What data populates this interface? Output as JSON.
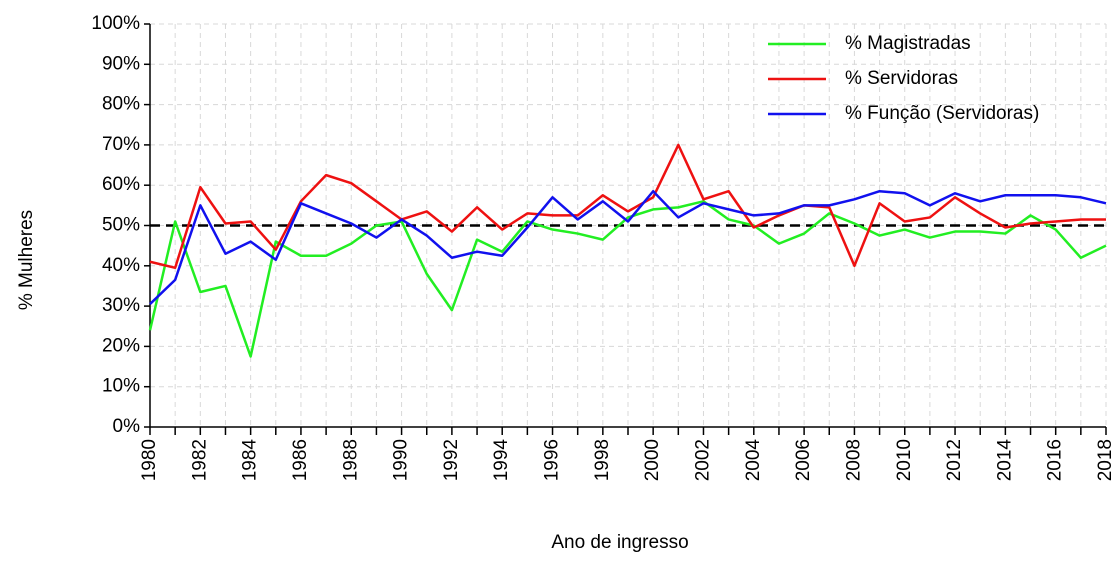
{
  "chart_data": {
    "type": "line",
    "xlabel": "Ano de ingresso",
    "ylabel": "% Mulheres",
    "x": [
      1980,
      1981,
      1982,
      1983,
      1984,
      1985,
      1986,
      1987,
      1988,
      1989,
      1990,
      1991,
      1992,
      1993,
      1994,
      1995,
      1996,
      1997,
      1998,
      1999,
      2000,
      2001,
      2002,
      2003,
      2004,
      2005,
      2006,
      2007,
      2008,
      2009,
      2010,
      2011,
      2012,
      2013,
      2014,
      2015,
      2016,
      2017,
      2018
    ],
    "series": [
      {
        "name": "% Magistradas",
        "color": "#22ee22",
        "values": [
          24,
          51,
          33.5,
          35,
          17.5,
          46,
          42.5,
          42.5,
          45.5,
          50,
          51,
          38,
          29,
          46.5,
          43.5,
          51,
          49,
          48,
          46.5,
          52,
          54,
          54.5,
          56,
          51.5,
          50,
          45.5,
          48,
          53,
          50.5,
          47.5,
          49,
          47,
          48.5,
          48.5,
          48,
          52.5,
          49,
          42,
          45
        ]
      },
      {
        "name": "% Servidoras",
        "color": "#ee1111",
        "values": [
          41,
          39.5,
          59.5,
          50.5,
          51,
          44,
          56,
          62.5,
          60.5,
          56,
          51.5,
          53.5,
          48.5,
          54.5,
          49,
          53,
          52.5,
          52.5,
          57.5,
          53.5,
          57,
          70,
          56.5,
          58.5,
          49.5,
          52.5,
          55,
          54.5,
          40,
          55.5,
          51,
          52,
          57,
          53,
          49.5,
          50.5,
          51,
          51.5,
          51.5
        ]
      },
      {
        "name": "% Função (Servidoras)",
        "color": "#1111ee",
        "values": [
          30.5,
          36.5,
          55,
          43,
          46,
          41.5,
          55.5,
          53,
          50.5,
          47,
          51.5,
          47.5,
          42,
          43.5,
          42.5,
          49.5,
          57,
          51.5,
          56,
          51,
          58.5,
          52,
          55.5,
          54,
          52.5,
          53,
          55,
          55,
          56.5,
          58.5,
          58,
          55,
          58,
          56,
          57.5,
          57.5,
          57.5,
          57,
          55.5
        ]
      }
    ],
    "hline": {
      "value": 50,
      "color": "#000000"
    },
    "xlim": [
      1980,
      2018
    ],
    "xticks": [
      1980,
      1982,
      1984,
      1986,
      1988,
      1990,
      1992,
      1994,
      1996,
      1998,
      2000,
      2002,
      2004,
      2006,
      2008,
      2010,
      2012,
      2014,
      2016,
      2018
    ],
    "xminor_ticks": [
      1981,
      1983,
      1985,
      1987,
      1989,
      1991,
      1993,
      1995,
      1997,
      1999,
      2001,
      2003,
      2005,
      2007,
      2009,
      2011,
      2013,
      2015,
      2017
    ],
    "ylim": [
      0,
      100
    ],
    "yticks": [
      {
        "value": 0,
        "label": "0%"
      },
      {
        "value": 10,
        "label": "10%"
      },
      {
        "value": 20,
        "label": "20%"
      },
      {
        "value": 30,
        "label": "30%"
      },
      {
        "value": 40,
        "label": "40%"
      },
      {
        "value": 50,
        "label": "50%"
      },
      {
        "value": 60,
        "label": "60%"
      },
      {
        "value": 70,
        "label": "70%"
      },
      {
        "value": 80,
        "label": "80%"
      },
      {
        "value": 90,
        "label": "90%"
      },
      {
        "value": 100,
        "label": "100%"
      }
    ],
    "grid": true,
    "legend": "upper right"
  }
}
